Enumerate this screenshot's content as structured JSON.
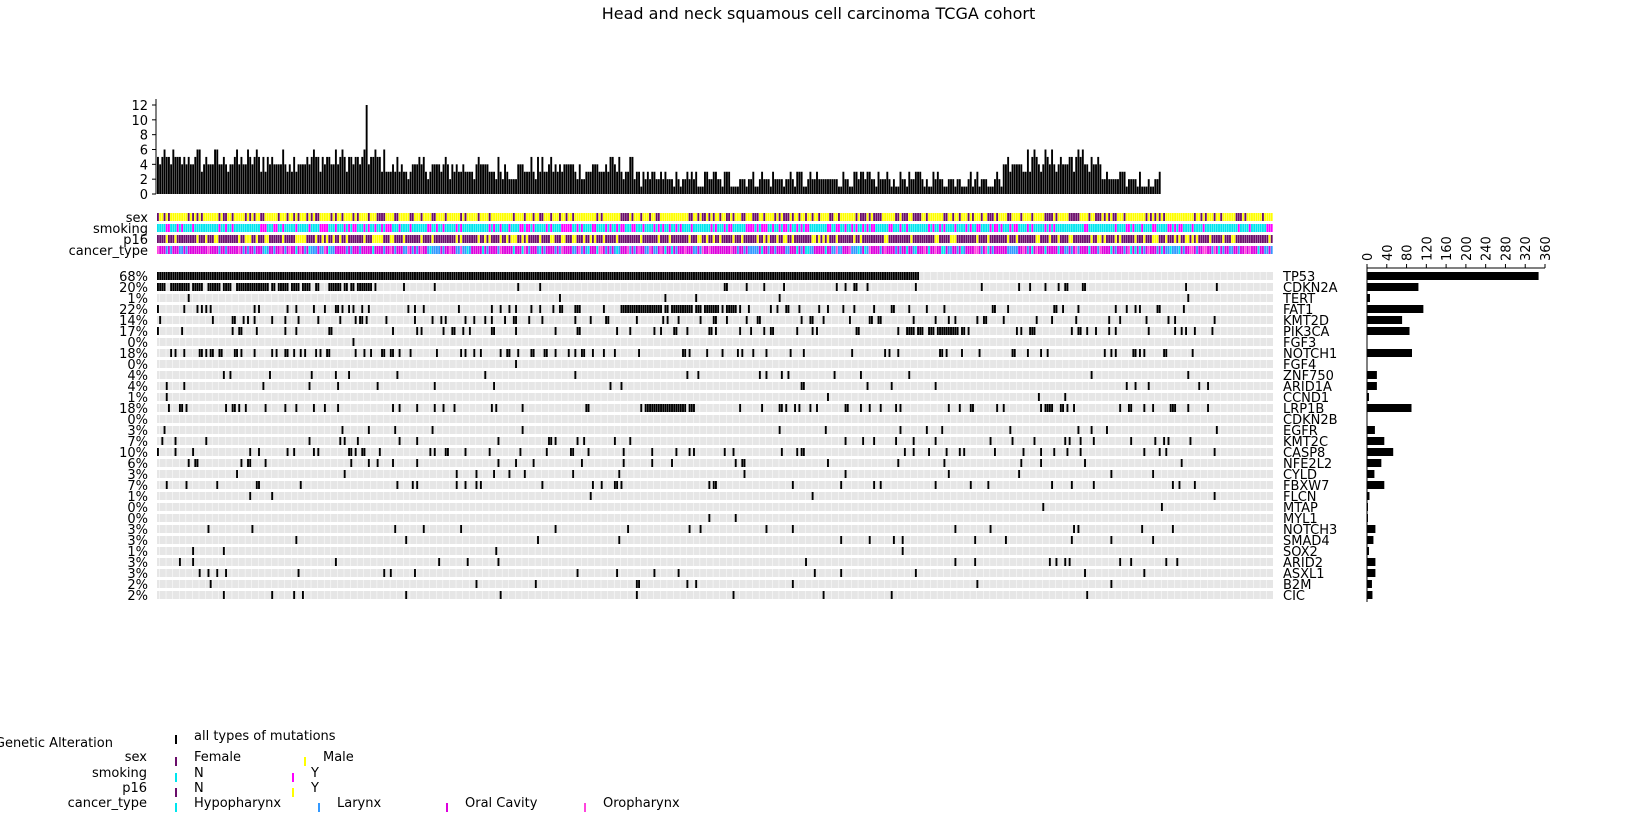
{
  "chart_data": {
    "type": "heatmap",
    "subtype": "oncoprint",
    "title": "Head and neck squamous cell carcinoma TCGA cohort",
    "num_samples": 508,
    "top_bar": {
      "ylim": [
        0,
        12
      ],
      "yticks": [
        "0",
        "2",
        "4",
        "6",
        "8",
        "10",
        "12"
      ]
    },
    "right_bar": {
      "xlim": [
        0,
        360
      ],
      "xticks": [
        "0",
        "40",
        "80",
        "120",
        "160",
        "200",
        "240",
        "280",
        "320",
        "360"
      ]
    },
    "tracks": [
      "sex",
      "smoking",
      "p16",
      "cancer_type"
    ],
    "genes": [
      {
        "name": "TP53",
        "pct": "68%",
        "count": 347
      },
      {
        "name": "CDKN2A",
        "pct": "20%",
        "count": 104
      },
      {
        "name": "TERT",
        "pct": "1%",
        "count": 6
      },
      {
        "name": "FAT1",
        "pct": "22%",
        "count": 114
      },
      {
        "name": "KMT2D",
        "pct": "14%",
        "count": 71
      },
      {
        "name": "PIK3CA",
        "pct": "17%",
        "count": 86
      },
      {
        "name": "FGF3",
        "pct": "0%",
        "count": 1
      },
      {
        "name": "NOTCH1",
        "pct": "18%",
        "count": 91
      },
      {
        "name": "FGF4",
        "pct": "0%",
        "count": 1
      },
      {
        "name": "ZNF750",
        "pct": "4%",
        "count": 20
      },
      {
        "name": "ARID1A",
        "pct": "4%",
        "count": 20
      },
      {
        "name": "CCND1",
        "pct": "1%",
        "count": 4
      },
      {
        "name": "LRP1B",
        "pct": "18%",
        "count": 90
      },
      {
        "name": "CDKN2B",
        "pct": "0%",
        "count": 0
      },
      {
        "name": "EGFR",
        "pct": "3%",
        "count": 16
      },
      {
        "name": "KMT2C",
        "pct": "7%",
        "count": 35
      },
      {
        "name": "CASP8",
        "pct": "10%",
        "count": 53
      },
      {
        "name": "NFE2L2",
        "pct": "6%",
        "count": 29
      },
      {
        "name": "CYLD",
        "pct": "3%",
        "count": 15
      },
      {
        "name": "FBXW7",
        "pct": "7%",
        "count": 35
      },
      {
        "name": "FLCN",
        "pct": "1%",
        "count": 5
      },
      {
        "name": "MTAP",
        "pct": "0%",
        "count": 2
      },
      {
        "name": "MYL1",
        "pct": "0%",
        "count": 2
      },
      {
        "name": "NOTCH3",
        "pct": "3%",
        "count": 17
      },
      {
        "name": "SMAD4",
        "pct": "3%",
        "count": 13
      },
      {
        "name": "SOX2",
        "pct": "1%",
        "count": 4
      },
      {
        "name": "ARID2",
        "pct": "3%",
        "count": 17
      },
      {
        "name": "ASXL1",
        "pct": "3%",
        "count": 17
      },
      {
        "name": "B2M",
        "pct": "2%",
        "count": 10
      },
      {
        "name": "CIC",
        "pct": "2%",
        "count": 11
      }
    ],
    "colors": {
      "mutation": "#000000",
      "background": "#e6e6e6",
      "Female": "#6a0d6a",
      "Male": "#ffff00",
      "smoking_N": "#00e5ee",
      "smoking_Y": "#ff00ff",
      "p16_N": "#6a0d6a",
      "p16_Y": "#ffff00",
      "Hypopharynx": "#00e5ee",
      "Larynx": "#3399ff",
      "Oral Cavity": "#dd00dd",
      "Oropharynx": "#ff44dd"
    },
    "legend": [
      {
        "title": "Genetic Alteration",
        "items": [
          {
            "label": "all types of mutations",
            "color": "#000000"
          }
        ]
      },
      {
        "title": "sex",
        "items": [
          {
            "label": "Female",
            "color": "#6a0d6a"
          },
          {
            "label": "Male",
            "color": "#ffff00"
          }
        ]
      },
      {
        "title": "smoking",
        "items": [
          {
            "label": "N",
            "color": "#00e5ee"
          },
          {
            "label": "Y",
            "color": "#ff00ff"
          }
        ]
      },
      {
        "title": "p16",
        "items": [
          {
            "label": "N",
            "color": "#6a0d6a"
          },
          {
            "label": "Y",
            "color": "#ffff00"
          }
        ]
      },
      {
        "title": "cancer_type",
        "items": [
          {
            "label": "Hypopharynx",
            "color": "#00e5ee"
          },
          {
            "label": "Larynx",
            "color": "#3399ff"
          },
          {
            "label": "Oral Cavity",
            "color": "#dd00dd"
          },
          {
            "label": "Oropharynx",
            "color": "#ff44dd"
          }
        ]
      }
    ]
  }
}
